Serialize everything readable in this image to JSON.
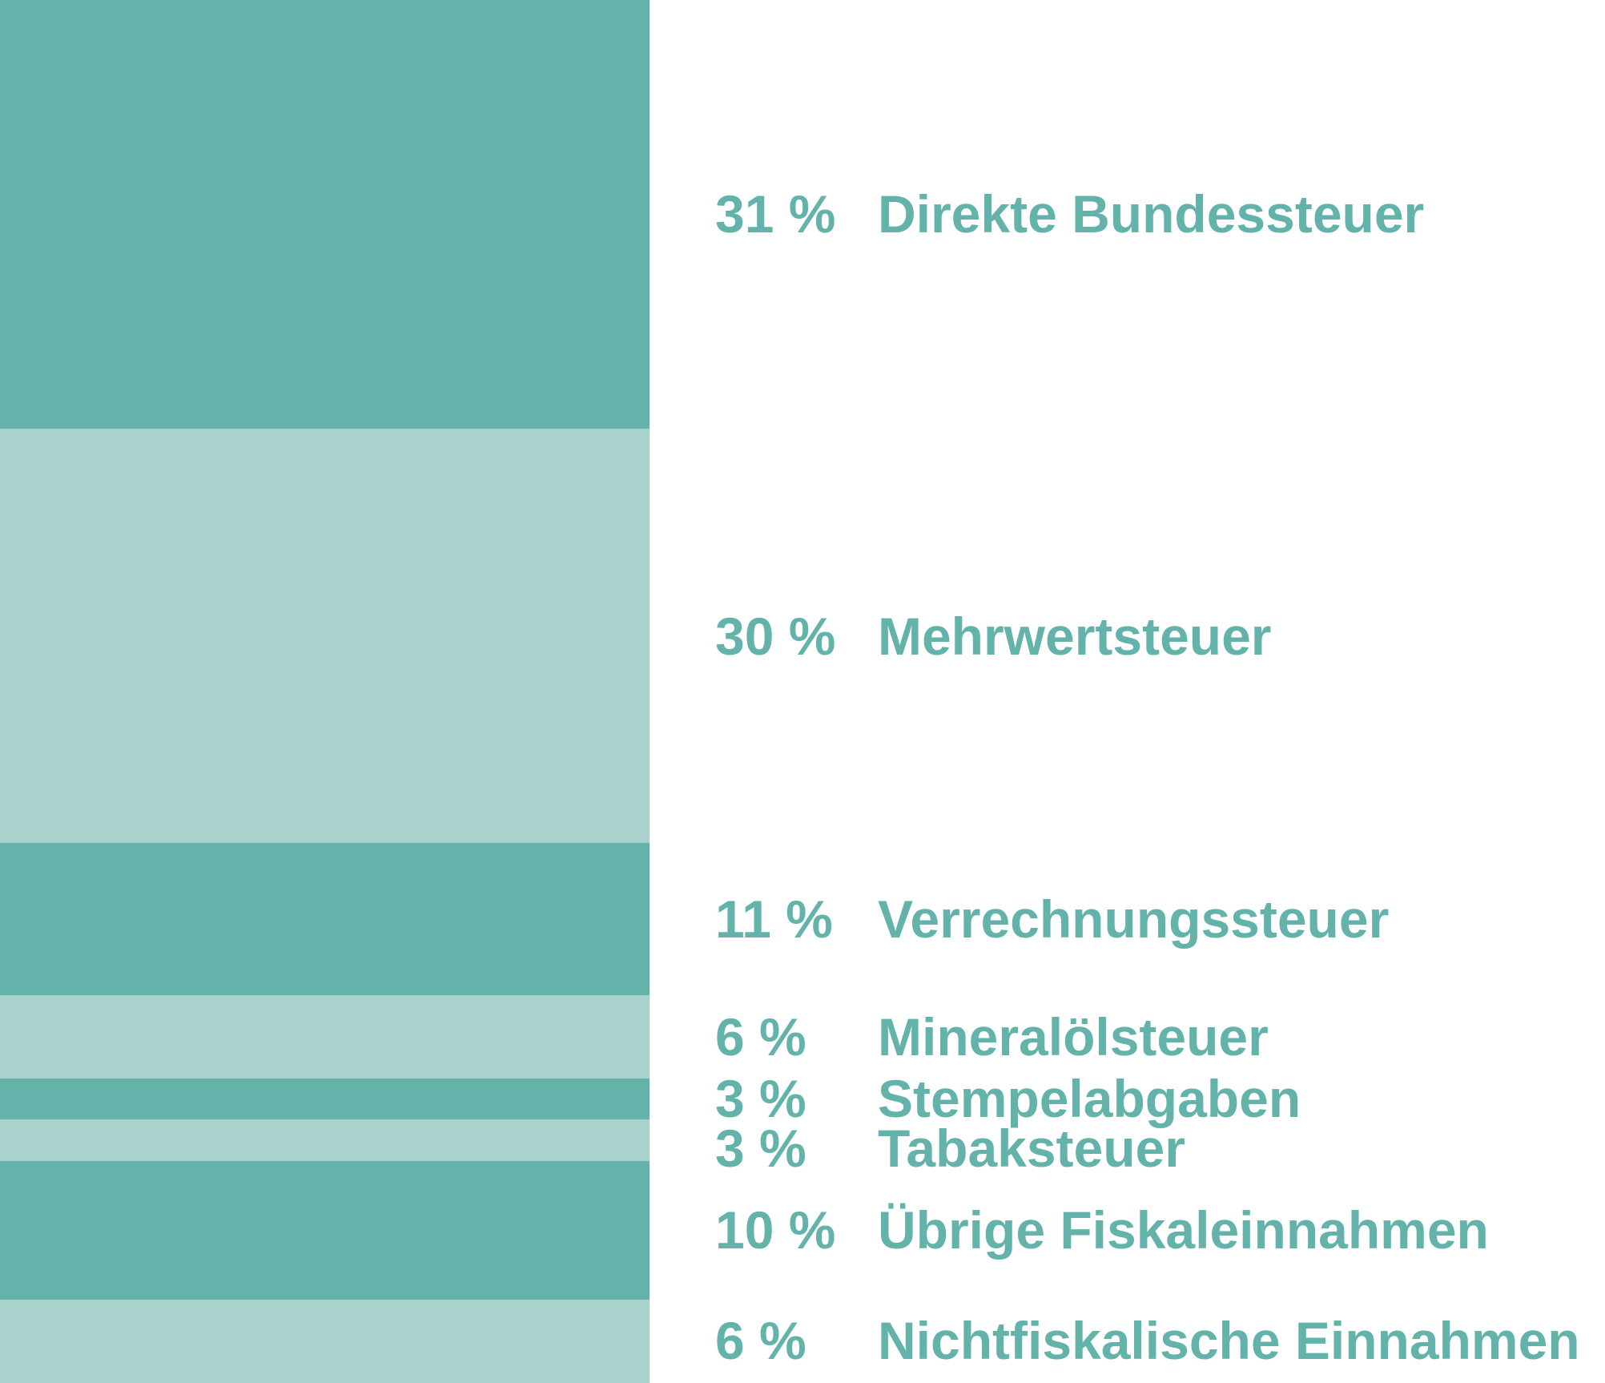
{
  "colors": {
    "dark": "#63b3aa",
    "light": "#aad2cd",
    "text": "#63b3aa"
  },
  "chart_data": {
    "type": "bar",
    "orientation": "stacked-vertical",
    "unit": "%",
    "segments": [
      {
        "label": "Direkte Bundessteuer",
        "value": 31,
        "value_label": "31 %",
        "shade": "dark"
      },
      {
        "label": "Mehrwertsteuer",
        "value": 30,
        "value_label": "30 %",
        "shade": "light"
      },
      {
        "label": "Verrechnungssteuer",
        "value": 11,
        "value_label": "11 %",
        "shade": "dark"
      },
      {
        "label": "Mineralölsteuer",
        "value": 6,
        "value_label": "6 %",
        "shade": "light"
      },
      {
        "label": "Stempelabgaben",
        "value": 3,
        "value_label": "3 %",
        "shade": "dark"
      },
      {
        "label": "Tabaksteuer",
        "value": 3,
        "value_label": "3 %",
        "shade": "light"
      },
      {
        "label": "Übrige Fiskaleinnahmen",
        "value": 10,
        "value_label": "10 %",
        "shade": "dark"
      },
      {
        "label": "Nichtfiskalische Einnahmen",
        "value": 6,
        "value_label": "6 %",
        "shade": "light"
      }
    ]
  }
}
